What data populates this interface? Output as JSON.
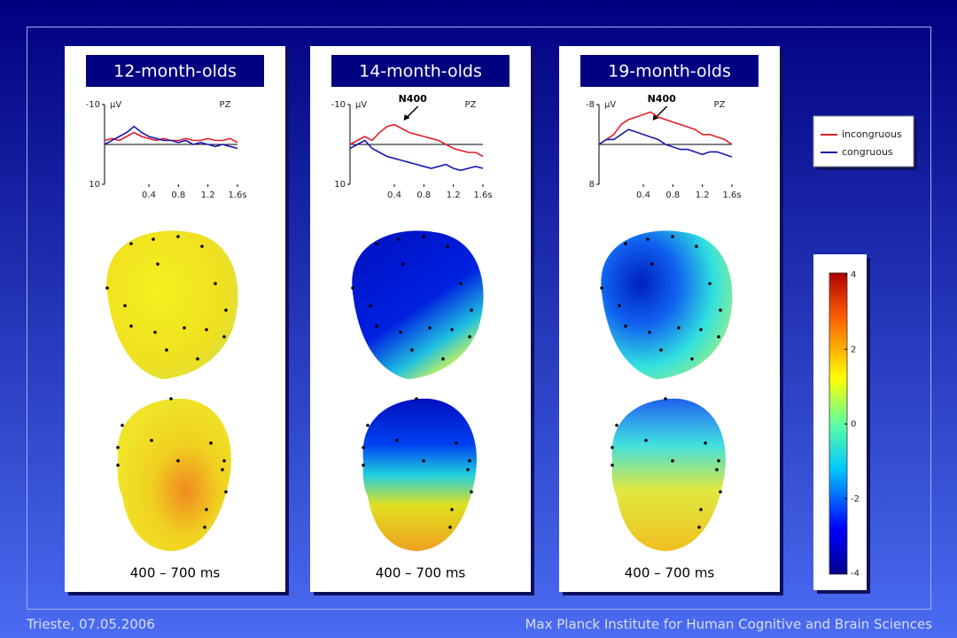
{
  "panels": [
    {
      "title": "12-month-olds",
      "time_window": "400 – 700 ms",
      "chart": {
        "type": "line",
        "y_label": "µV",
        "channel": "PZ",
        "x": [
          -0.2,
          -0.1,
          0,
          0.1,
          0.2,
          0.3,
          0.4,
          0.5,
          0.6,
          0.7,
          0.8,
          0.9,
          1.0,
          1.1,
          1.2,
          1.3,
          1.4,
          1.5,
          1.6
        ],
        "series": [
          {
            "values": [
              -1,
              -1.5,
              -1,
              -2,
              -3,
              -2,
              -1.5,
              -1,
              -1.5,
              -1,
              -1,
              -1.5,
              -1,
              -1,
              -1.5,
              -1,
              -1,
              -1.5,
              -0.5
            ]
          },
          {
            "values": [
              0,
              -1,
              -2,
              -3,
              -4.5,
              -3,
              -2,
              -1.5,
              -1,
              -1,
              -0.5,
              -1,
              0,
              -0.5,
              0,
              0.5,
              0,
              0.5,
              1
            ]
          }
        ],
        "xlim": [
          -0.2,
          1.6
        ],
        "xticks": [
          0.4,
          0.8,
          1.2,
          {
            "value": 1.6,
            "label": "1.6s"
          }
        ],
        "ylim": [
          -10,
          10
        ],
        "yticks": [
          -10,
          10
        ],
        "y_inverted": true
      }
    },
    {
      "title": "14-month-olds",
      "time_window": "400 – 700 ms",
      "chart": {
        "type": "line",
        "y_label": "µV",
        "channel": "PZ",
        "annotation": "N400",
        "x": [
          -0.2,
          -0.1,
          0,
          0.1,
          0.2,
          0.3,
          0.4,
          0.5,
          0.6,
          0.7,
          0.8,
          0.9,
          1.0,
          1.1,
          1.2,
          1.3,
          1.4,
          1.5,
          1.6
        ],
        "series": [
          {
            "values": [
              0,
              -1,
              -2,
              -1,
              -3,
              -4.5,
              -5,
              -4,
              -3,
              -2.5,
              -2,
              -1.5,
              -1,
              0,
              1,
              1.5,
              2,
              2,
              3
            ]
          },
          {
            "values": [
              1,
              0,
              -1,
              1,
              2,
              3,
              3.5,
              4,
              4.5,
              5,
              5.5,
              6,
              5.5,
              5,
              6,
              6.5,
              6,
              5.5,
              6
            ]
          }
        ],
        "xlim": [
          -0.2,
          1.6
        ],
        "xticks": [
          0.4,
          0.8,
          1.2,
          {
            "value": 1.6,
            "label": "1.6s"
          }
        ],
        "ylim": [
          -10,
          10
        ],
        "yticks": [
          -10,
          10
        ],
        "y_inverted": true
      }
    },
    {
      "title": "19-month-olds",
      "time_window": "400 – 700 ms",
      "chart": {
        "type": "line",
        "y_label": "µV",
        "channel": "PZ",
        "annotation": "N400",
        "x": [
          -0.2,
          -0.1,
          0,
          0.1,
          0.2,
          0.3,
          0.4,
          0.5,
          0.6,
          0.7,
          0.8,
          0.9,
          1.0,
          1.1,
          1.2,
          1.3,
          1.4,
          1.5,
          1.6
        ],
        "series": [
          {
            "values": [
              0,
              -1,
              -2,
              -4,
              -5,
              -5.5,
              -6,
              -6.5,
              -5.5,
              -5,
              -4.5,
              -4,
              -3.5,
              -3,
              -2,
              -2,
              -1.5,
              -1,
              0
            ]
          },
          {
            "values": [
              0,
              -1,
              -1,
              -2,
              -3,
              -2.5,
              -2,
              -1.5,
              -1,
              0,
              0.5,
              1,
              1,
              1.5,
              2,
              1.5,
              1.5,
              2,
              2.5
            ]
          }
        ],
        "xlim": [
          -0.2,
          1.6
        ],
        "xticks": [
          0.4,
          0.8,
          1.2,
          {
            "value": 1.6,
            "label": "1.6s"
          }
        ],
        "ylim": [
          -8,
          8
        ],
        "yticks": [
          -8,
          8
        ],
        "y_inverted": true
      }
    }
  ],
  "legend": [
    {
      "name": "incongruous",
      "color": "#e0202a"
    },
    {
      "name": "congruous",
      "color": "#1818b0"
    }
  ],
  "colorbar": {
    "lim": [
      -4,
      4
    ],
    "ticks": [
      4,
      2,
      0,
      -2,
      -4
    ]
  },
  "footer": {
    "left": "Trieste, 07.05.2006",
    "right": "Max Planck Institute for Human Cognitive and Brain Sciences"
  }
}
